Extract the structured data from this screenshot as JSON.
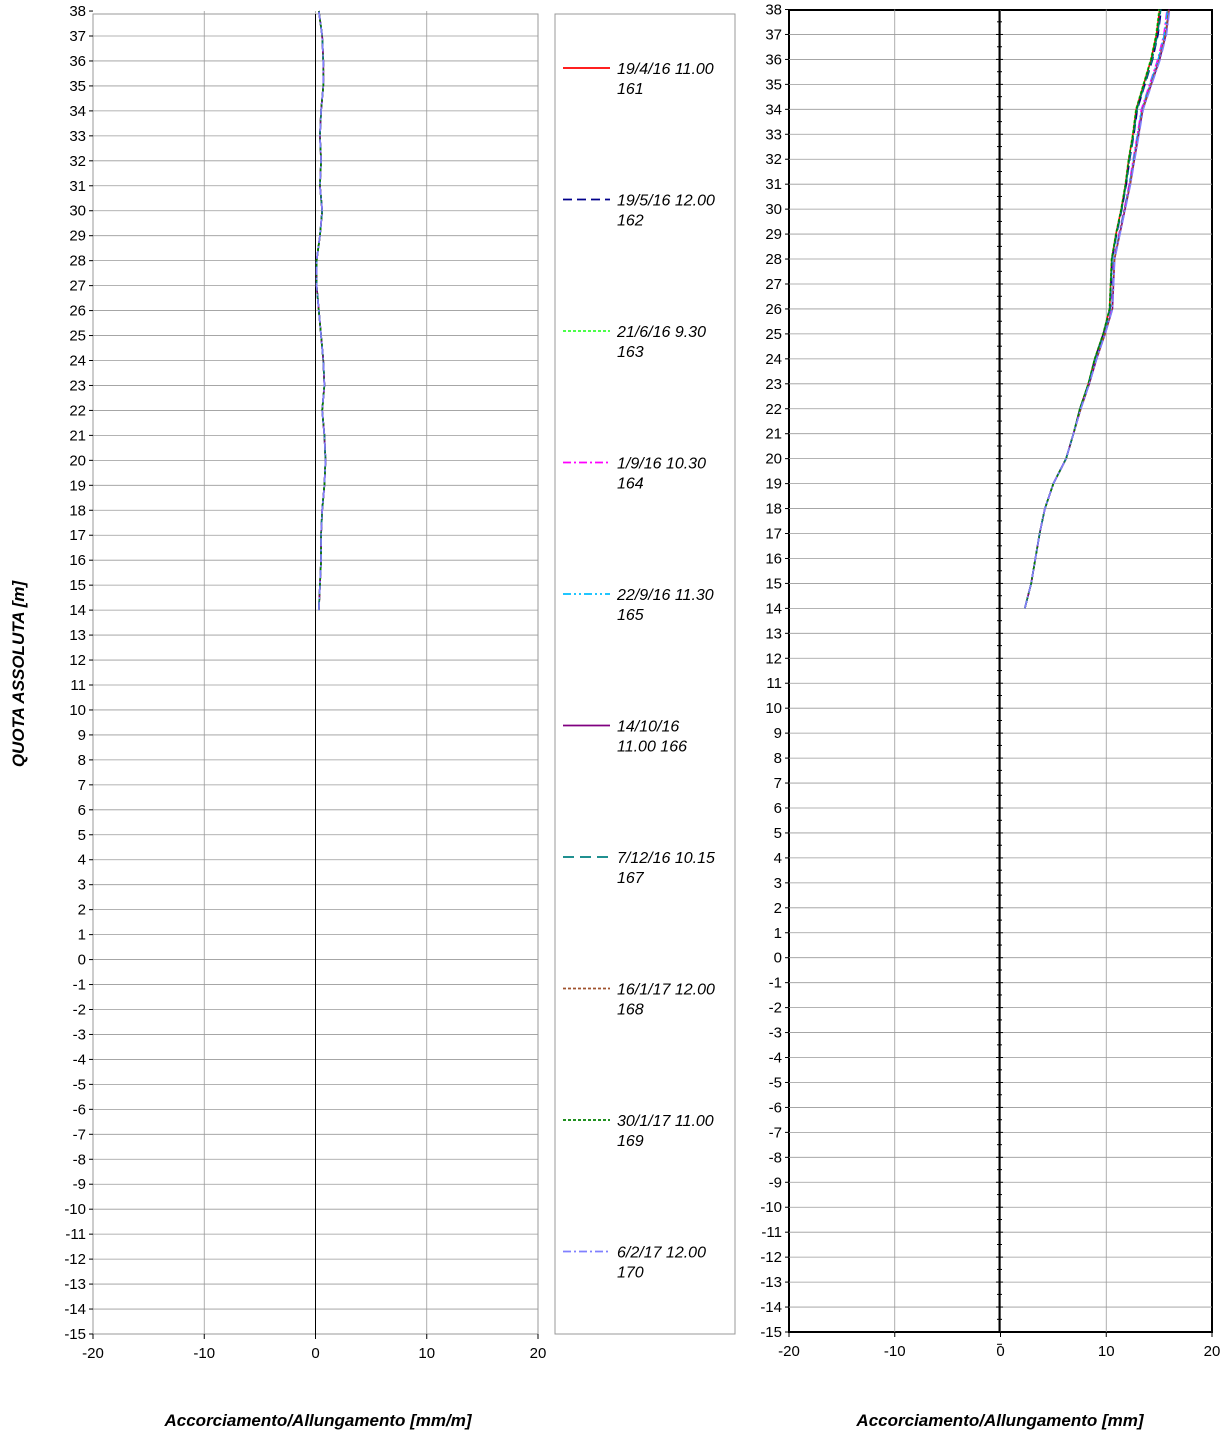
{
  "chart_data": [
    {
      "type": "line",
      "title": "",
      "xlabel": "Accorciamento/Allungamento [mm/m]",
      "ylabel": "QUOTA ASSOLUTA [m]",
      "xlim": [
        -20,
        20
      ],
      "ylim": [
        -15,
        38
      ],
      "xticks": [
        "-20",
        "-10",
        "0",
        "10",
        "20"
      ],
      "yticks": [
        "38",
        "37",
        "36",
        "35",
        "34",
        "33",
        "32",
        "31",
        "30",
        "29",
        "28",
        "27",
        "26",
        "25",
        "24",
        "23",
        "22",
        "21",
        "20",
        "19",
        "18",
        "17",
        "16",
        "15",
        "14",
        "13",
        "12",
        "11",
        "10",
        "9",
        "8",
        "7",
        "6",
        "5",
        "4",
        "3",
        "2",
        "1",
        "0",
        "-1",
        "-2",
        "-3",
        "-4",
        "-5",
        "-6",
        "-7",
        "-8",
        "-9",
        "-10",
        "-11",
        "-12",
        "-13",
        "-14",
        "-15"
      ],
      "grid": true,
      "y": [
        14,
        15,
        16,
        17,
        18,
        19,
        20,
        21,
        22,
        23,
        24,
        25,
        26,
        27,
        28,
        29,
        30,
        31,
        32,
        33,
        34,
        35,
        36,
        37,
        38
      ],
      "series_values": [
        0.3,
        0.4,
        0.5,
        0.5,
        0.6,
        0.8,
        0.9,
        0.8,
        0.6,
        0.8,
        0.7,
        0.5,
        0.3,
        0.1,
        0.1,
        0.4,
        0.6,
        0.4,
        0.5,
        0.4,
        0.5,
        0.7,
        0.7,
        0.6,
        0.3
      ],
      "series": [
        {
          "name": "19/4/16 11.00 161",
          "color": "#ff0000",
          "dash": ""
        },
        {
          "name": "19/5/16 12.00 162",
          "color": "#00008b",
          "dash": "9,5"
        },
        {
          "name": "21/6/16 9.30 163",
          "color": "#33ff33",
          "dash": "3,2"
        },
        {
          "name": "1/9/16 10.30 164",
          "color": "#ff00ff",
          "dash": "8,3,2,3"
        },
        {
          "name": "22/9/16 11.30 165",
          "color": "#00bfff",
          "dash": "8,3,2,3,2,3"
        },
        {
          "name": "14/10/16 11.00 166",
          "color": "#800080",
          "dash": ""
        },
        {
          "name": "7/12/16 10.15 167",
          "color": "#008080",
          "dash": "11,6"
        },
        {
          "name": "16/1/17 12.00 168",
          "color": "#a0522d",
          "dash": "3,2"
        },
        {
          "name": "30/1/17 11.00 169",
          "color": "#008000",
          "dash": "3,2"
        },
        {
          "name": "6/2/17 12.00 170",
          "color": "#8080ff",
          "dash": "8,3,2,3"
        }
      ]
    },
    {
      "type": "line",
      "title": "",
      "xlabel": "Accorciamento/Allungamento [mm]",
      "ylabel": "",
      "xlim": [
        -20,
        20
      ],
      "ylim": [
        -15,
        38
      ],
      "xticks": [
        "-20",
        "-10",
        "0",
        "10",
        "20"
      ],
      "yticks": [
        "38",
        "37",
        "36",
        "35",
        "34",
        "33",
        "32",
        "31",
        "30",
        "29",
        "28",
        "27",
        "26",
        "25",
        "24",
        "23",
        "22",
        "21",
        "20",
        "19",
        "18",
        "17",
        "16",
        "15",
        "14",
        "13",
        "12",
        "11",
        "10",
        "9",
        "8",
        "7",
        "6",
        "5",
        "4",
        "3",
        "2",
        "1",
        "0",
        "-1",
        "-2",
        "-3",
        "-4",
        "-5",
        "-6",
        "-7",
        "-8",
        "-9",
        "-10",
        "-11",
        "-12",
        "-13",
        "-14",
        "-15"
      ],
      "grid": true,
      "y": [
        14,
        15,
        16,
        17,
        18,
        19,
        20,
        21,
        22,
        23,
        24,
        25,
        26,
        27,
        28,
        29,
        30,
        31,
        32,
        33,
        34,
        35,
        36,
        37,
        38
      ],
      "base_values": [
        2.3,
        2.9,
        3.3,
        3.7,
        4.2,
        5.0,
        6.2,
        6.9,
        7.5,
        8.3,
        8.9,
        9.7,
        10.3,
        10.4,
        10.5,
        10.9,
        11.4,
        11.8,
        12.1,
        12.5,
        12.8,
        13.5,
        14.2,
        14.7,
        15.0
      ],
      "final_offset": [
        0,
        0,
        0,
        0,
        0,
        0,
        0,
        0,
        0.1,
        0.1,
        0.2,
        0.2,
        0.3,
        0.3,
        0.3,
        0.4,
        0.4,
        0.5,
        0.6,
        0.6,
        0.7,
        0.8,
        0.9,
        1.0,
        1.0
      ],
      "series_offsets": [
        0.05,
        0.2,
        0.0,
        0.75,
        0.8,
        0.95,
        0.15,
        0.9,
        0.05,
        1.0
      ]
    }
  ]
}
